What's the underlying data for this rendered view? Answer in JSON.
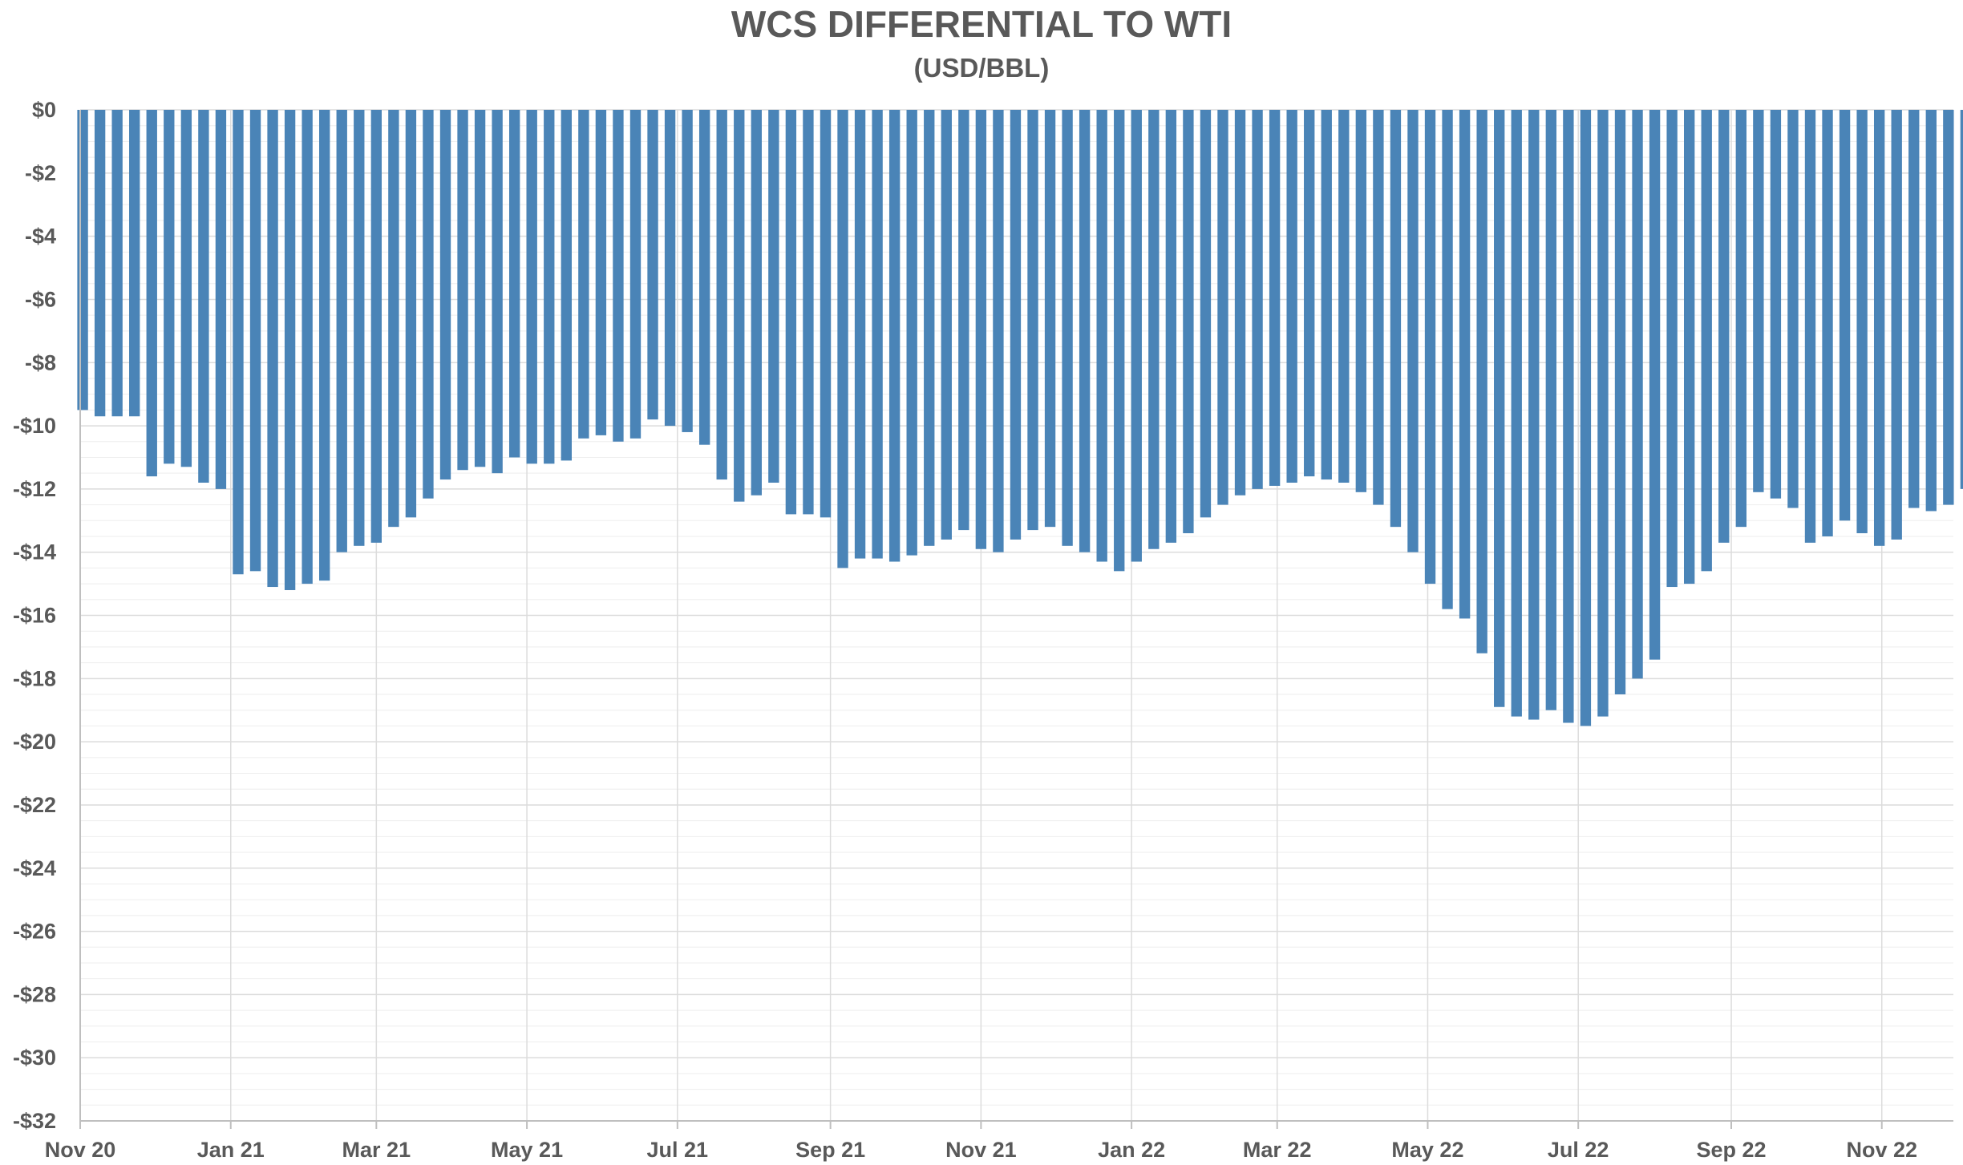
{
  "chart_data": {
    "type": "bar",
    "title": "WCS DIFFERENTIAL TO WTI",
    "subtitle": "(USD/BBL)",
    "xlabel": "",
    "ylabel": "",
    "ylim": [
      -32,
      0
    ],
    "y_ticks": [
      "$0",
      "-$2",
      "-$4",
      "-$6",
      "-$8",
      "-$10",
      "-$12",
      "-$14",
      "-$16",
      "-$18",
      "-$20",
      "-$22",
      "-$24",
      "-$26",
      "-$28",
      "-$30",
      "-$32"
    ],
    "x_ticks": [
      "Nov 20",
      "Jan 21",
      "Mar 21",
      "May 21",
      "Jul 21",
      "Sep 21",
      "Nov 21",
      "Jan 22",
      "Mar 22",
      "May 22",
      "Jul 22",
      "Sep 22",
      "Nov 22"
    ],
    "x_tick_months": [
      "2020-11",
      "2021-01",
      "2021-03",
      "2021-05",
      "2021-07",
      "2021-09",
      "2021-11",
      "2022-01",
      "2022-03",
      "2022-05",
      "2022-07",
      "2022-09",
      "2022-11"
    ],
    "x_range": [
      "2020-11-01",
      "2022-11-30"
    ],
    "grid": true,
    "bar_color": "#4a84b7",
    "series": [
      {
        "date_step_days": 7,
        "start_date": "2020-11-02",
        "values": [
          -9.5,
          -9.7,
          -9.7,
          -9.7,
          -11.6,
          -11.2,
          -11.3,
          -11.8,
          -12.0,
          -14.7,
          -14.6,
          -15.1,
          -15.2,
          -15.0,
          -14.9,
          -14.0,
          -13.8,
          -13.7,
          -13.2,
          -12.9,
          -12.3,
          -11.7,
          -11.4,
          -11.3,
          -11.5,
          -11.0,
          -11.2,
          -11.2,
          -11.1,
          -10.4,
          -10.3,
          -10.5,
          -10.4,
          -9.8,
          -10.0,
          -10.2,
          -10.6,
          -11.7,
          -12.4,
          -12.2,
          -11.8,
          -12.8,
          -12.8,
          -12.9,
          -14.5,
          -14.2,
          -14.2,
          -14.3,
          -14.1,
          -13.8,
          -13.6,
          -13.3,
          -13.9,
          -14.0,
          -13.6,
          -13.3,
          -13.2,
          -13.8,
          -14.0,
          -14.3,
          -14.6,
          -14.3,
          -13.9,
          -13.7,
          -13.4,
          -12.9,
          -12.5,
          -12.2,
          -12.0,
          -11.9,
          -11.8,
          -11.6,
          -11.7,
          -11.8,
          -12.1,
          -12.5,
          -13.2,
          -14.0,
          -15.0,
          -15.8,
          -16.1,
          -17.2,
          -18.9,
          -19.2,
          -19.3,
          -19.0,
          -19.4,
          -19.5,
          -19.2,
          -18.5,
          -18.0,
          -17.4,
          -15.1,
          -15.0,
          -14.6,
          -13.7,
          -13.2,
          -12.1,
          -12.3,
          -12.6,
          -13.7,
          -13.5,
          -13.0,
          -13.4,
          -13.8,
          -13.6,
          -12.6,
          -12.7,
          -12.5,
          -12.0,
          -11.8,
          -12.3,
          -12.6,
          -11.4,
          -11.2,
          -10.9,
          -11.5,
          -12.4,
          -12.6,
          -12.7,
          -13.0,
          -12.8,
          -12.7,
          -12.5,
          -12.9,
          -13.4,
          -14.6,
          -18.0,
          -18.1,
          -18.8,
          -18.9,
          -18.8,
          -18.6,
          -18.2,
          -17.5,
          -18.2,
          -20.8,
          -20.9,
          -20.9,
          -20.4,
          -20.7,
          -21.4,
          -20.9,
          -19.7,
          -19.7,
          -19.7,
          -19.7,
          -19.7,
          -19.8,
          -20.0,
          -20.2,
          -20.4,
          -20.4,
          -21.2,
          -22.4,
          -22.0,
          -22.0,
          -24.2,
          -24.3,
          -27.3,
          -27.1,
          -26.7,
          -28.2,
          -29.8,
          -29.3,
          -29.1,
          -29.0,
          -26.8,
          -27.4,
          -28.8,
          -29.0
        ]
      }
    ]
  }
}
